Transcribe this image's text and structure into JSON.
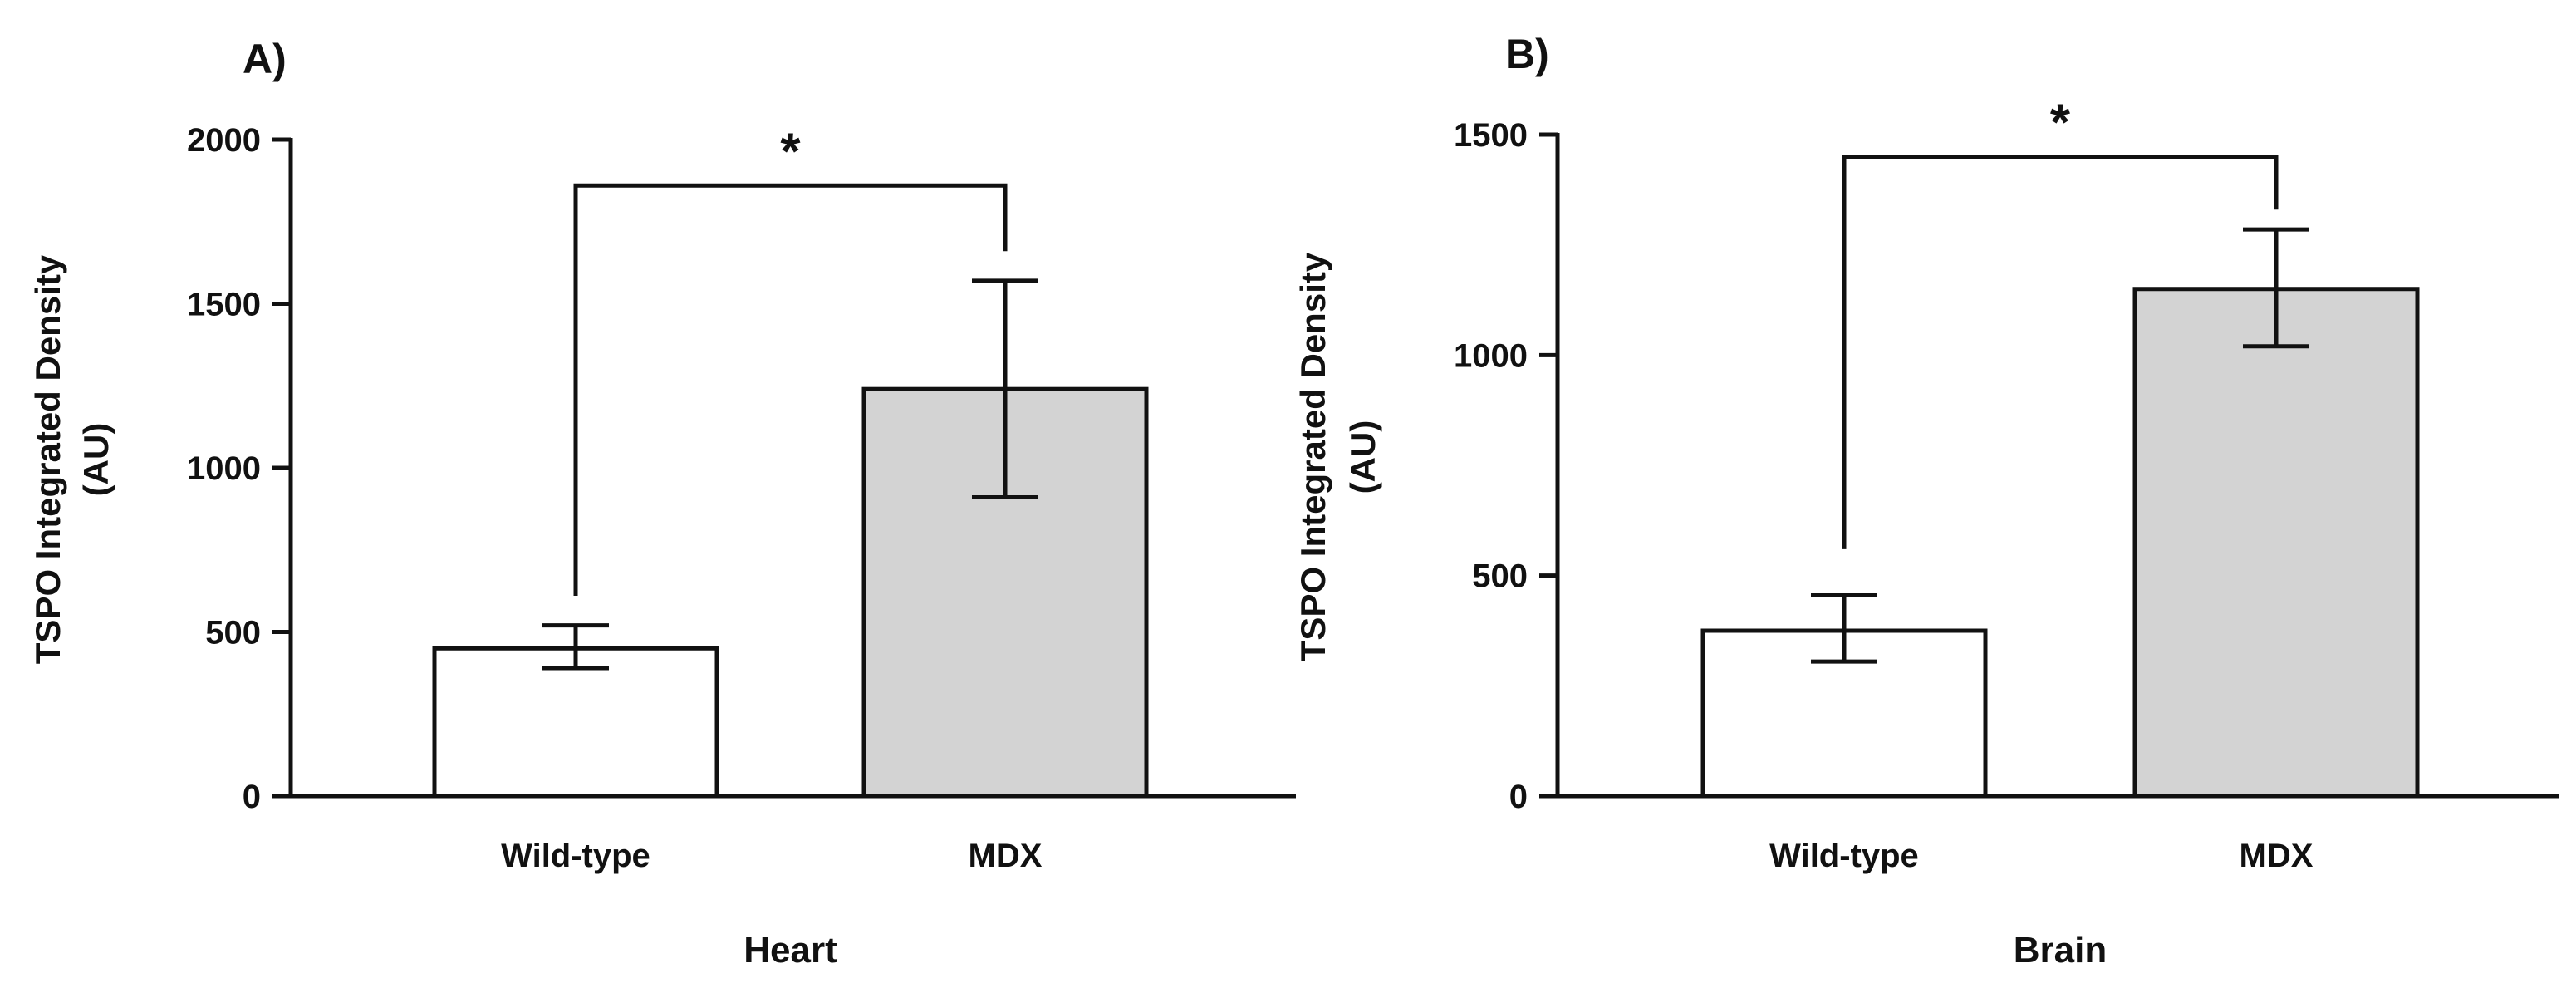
{
  "colors": {
    "axis": "#111111",
    "bar_stroke": "#111111",
    "wild_type_fill": "#ffffff",
    "mdx_fill": "#d3d3d3"
  },
  "chart_data": [
    {
      "type": "bar",
      "panel_label": "A)",
      "title": "",
      "xlabel": "Heart",
      "ylabel_line1": "TSPO Integrated Density",
      "ylabel_line2": "(AU)",
      "categories": [
        "Wild-type",
        "MDX"
      ],
      "values": [
        450,
        1240
      ],
      "error_low": [
        390,
        910
      ],
      "error_high": [
        520,
        1570
      ],
      "fills": [
        "#ffffff",
        "#d3d3d3"
      ],
      "ylim": [
        0,
        2000
      ],
      "yticks": [
        0,
        500,
        1000,
        1500,
        2000
      ],
      "significance": {
        "from": 0,
        "to": 1,
        "label": "*",
        "level": 1860,
        "left_drop": 610,
        "right_drop": 1660
      }
    },
    {
      "type": "bar",
      "panel_label": "B)",
      "title": "",
      "xlabel": "Brain",
      "ylabel_line1": "TSPO Integrated Density",
      "ylabel_line2": "(AU)",
      "categories": [
        "Wild-type",
        "MDX"
      ],
      "values": [
        375,
        1150
      ],
      "error_low": [
        305,
        1020
      ],
      "error_high": [
        455,
        1285
      ],
      "fills": [
        "#ffffff",
        "#d3d3d3"
      ],
      "ylim": [
        0,
        1500
      ],
      "yticks": [
        0,
        500,
        1000,
        1500
      ],
      "significance": {
        "from": 0,
        "to": 1,
        "label": "*",
        "level": 1450,
        "left_drop": 560,
        "right_drop": 1330
      }
    }
  ]
}
